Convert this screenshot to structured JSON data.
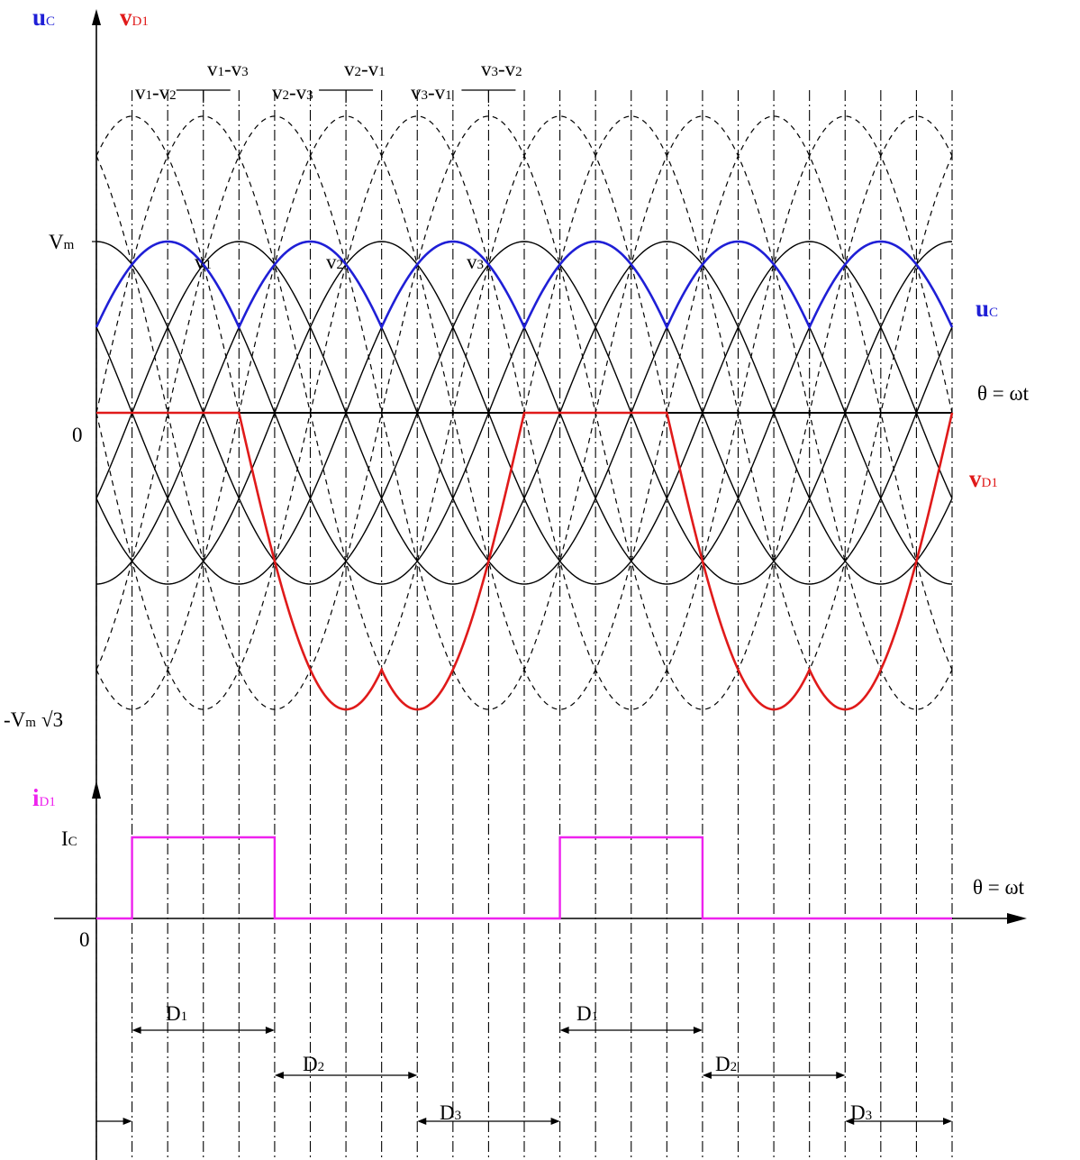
{
  "colors": {
    "uc": "#1f1fd6",
    "vd1": "#e01a1a",
    "id1": "#ee22ee",
    "axis": "#000000",
    "dashed": "#000000",
    "solid": "#000000"
  },
  "upper_axis": {
    "uc_label": "u",
    "uc_sub": "C",
    "vd1_label": "v",
    "vd1_sub": "D1",
    "vm_label": "V",
    "vm_sub": "m",
    "zero_label": "0",
    "neg_label_a": "-V",
    "neg_label_sub": "m",
    "neg_label_b": "√3",
    "theta_label": "θ = ωt"
  },
  "lower_axis": {
    "id1_label": "i",
    "id1_sub": "D1",
    "ic_label": "I",
    "ic_sub": "C",
    "zero_label": "0",
    "theta_label": "θ = ωt"
  },
  "curve_labels": {
    "uc_right": "u",
    "uc_right_sub": "C",
    "vd1_right": "v",
    "vd1_right_sub": "D1",
    "v1": "v",
    "v1_sub": "1",
    "v2": "v",
    "v2_sub": "2",
    "v3": "v",
    "v3_sub": "3"
  },
  "line_labels": [
    {
      "a": "v",
      "as": "1",
      "b": "-v",
      "bs": "2"
    },
    {
      "a": "v",
      "as": "1",
      "b": "-v",
      "bs": "3"
    },
    {
      "a": "v",
      "as": "2",
      "b": "-v",
      "bs": "3"
    },
    {
      "a": "v",
      "as": "2",
      "b": "-v",
      "bs": "1"
    },
    {
      "a": "v",
      "as": "3",
      "b": "-v",
      "bs": "1"
    },
    {
      "a": "v",
      "as": "3",
      "b": "-v",
      "bs": "2"
    }
  ],
  "conduction": [
    {
      "label": "D",
      "sub": "1"
    },
    {
      "label": "D",
      "sub": "2"
    },
    {
      "label": "D",
      "sub": "3"
    },
    {
      "label": "D",
      "sub": "1"
    },
    {
      "label": "D",
      "sub": "2"
    },
    {
      "label": "D",
      "sub": "3"
    }
  ]
}
